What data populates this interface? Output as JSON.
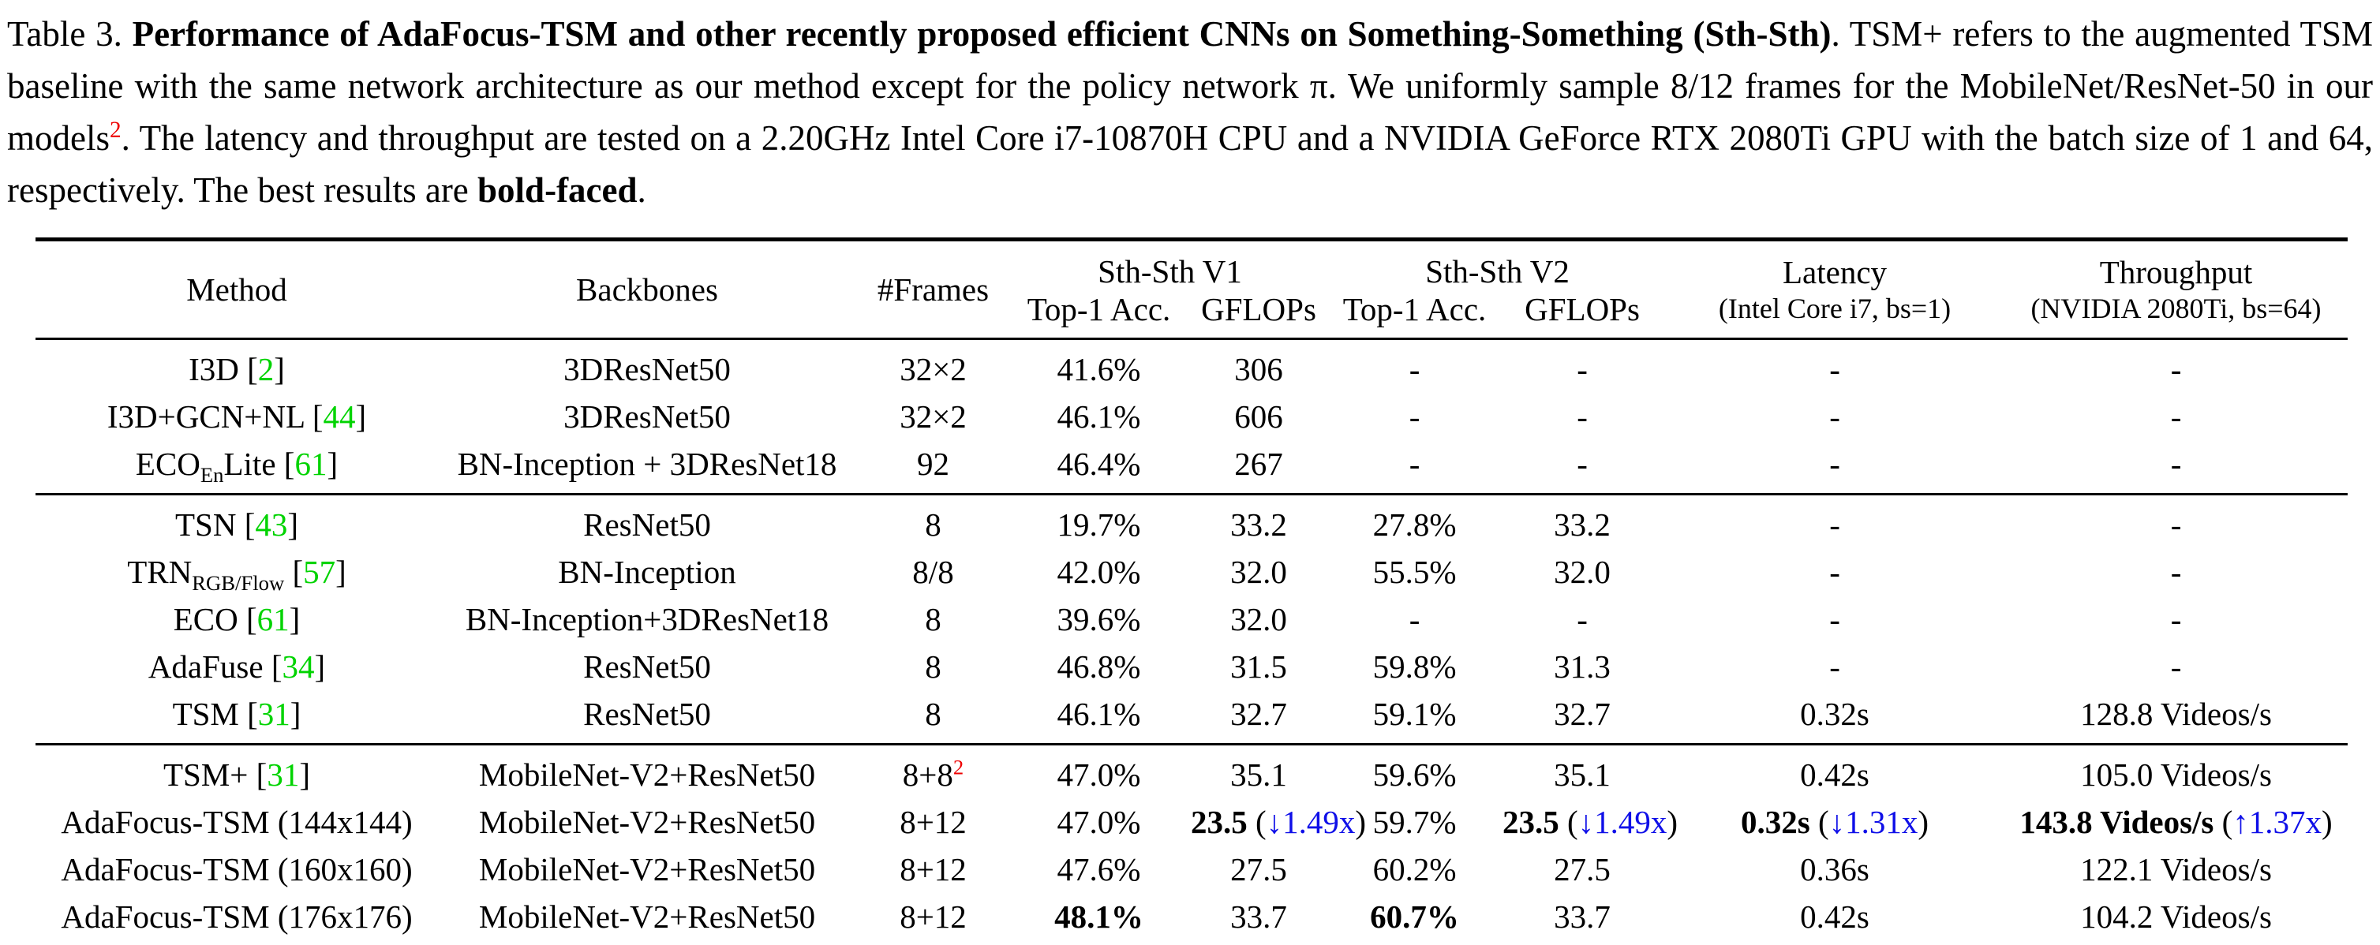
{
  "palette": {
    "text": "#000000",
    "background": "#ffffff",
    "citation_green": "#00d300",
    "improvement_blue": "#0f0fe8",
    "footnote_red": "#ee0000"
  },
  "caption": {
    "label": "Table 3. ",
    "title_bold": "Performance of AdaFocus-TSM and other recently proposed efficient CNNs on Something-Something (Sth-Sth)",
    "body_1": ". TSM+ refers to the augmented TSM baseline with the same network architecture as our method except for the policy network π. We uniformly sample 8/12 frames for the MobileNet/ResNet-50 in our models",
    "footnote_marker": "2",
    "body_2": ". The latency and throughput are tested on a 2.20GHz Intel Core i7-10870H CPU and a NVIDIA GeForce RTX 2080Ti GPU with the batch size of 1 and 64, respectively. The best results are ",
    "bold_faced_word": "bold-faced",
    "period": "."
  },
  "table": {
    "column_keys": [
      "method",
      "backbones",
      "frames",
      "v1-top1",
      "v1-gflops",
      "v2-top1",
      "v2-gflops",
      "latency",
      "throughput"
    ],
    "headers": {
      "method": "Method",
      "backbones": "Backbones",
      "frames": "#Frames",
      "sthsth_v1": "Sth-Sth V1",
      "sthsth_v2": "Sth-Sth V2",
      "top1_v1": "Top-1 Acc.",
      "gflops_v1": "GFLOPs",
      "top1_v2": "Top-1 Acc.",
      "gflops_v2": "GFLOPs",
      "latency_line1": "Latency",
      "latency_line2": "(Intel Core i7, bs=1)",
      "throughput_line1": "Throughput",
      "throughput_line2": "(NVIDIA 2080Ti, bs=64)"
    },
    "groups": [
      {
        "rows": [
          {
            "cells": [
              [
                "I3D [",
                {
                  "t": "2",
                  "c": "green"
                },
                "]"
              ],
              [
                "3DResNet50"
              ],
              [
                "32×2"
              ],
              [
                "41.6%"
              ],
              [
                "306"
              ],
              [
                "-"
              ],
              [
                "-"
              ],
              [
                "-"
              ],
              [
                "-"
              ]
            ]
          },
          {
            "cells": [
              [
                "I3D+GCN+NL [",
                {
                  "t": "44",
                  "c": "green"
                },
                "]"
              ],
              [
                "3DResNet50"
              ],
              [
                "32×2"
              ],
              [
                "46.1%"
              ],
              [
                "606"
              ],
              [
                "-"
              ],
              [
                "-"
              ],
              [
                "-"
              ],
              [
                "-"
              ]
            ]
          },
          {
            "cells": [
              [
                "ECO",
                {
                  "t": "En",
                  "v": "sub"
                },
                "Lite [",
                {
                  "t": "61",
                  "c": "green"
                },
                "]"
              ],
              [
                "BN-Inception + 3DResNet18"
              ],
              [
                "92"
              ],
              [
                "46.4%"
              ],
              [
                "267"
              ],
              [
                "-"
              ],
              [
                "-"
              ],
              [
                "-"
              ],
              [
                "-"
              ]
            ]
          }
        ]
      },
      {
        "rows": [
          {
            "cells": [
              [
                "TSN [",
                {
                  "t": "43",
                  "c": "green"
                },
                "]"
              ],
              [
                "ResNet50"
              ],
              [
                "8"
              ],
              [
                "19.7%"
              ],
              [
                "33.2"
              ],
              [
                "27.8%"
              ],
              [
                "33.2"
              ],
              [
                "-"
              ],
              [
                "-"
              ]
            ]
          },
          {
            "cells": [
              [
                "TRN",
                {
                  "t": "RGB/Flow",
                  "v": "sub"
                },
                " [",
                {
                  "t": "57",
                  "c": "green"
                },
                "]"
              ],
              [
                "BN-Inception"
              ],
              [
                "8/8"
              ],
              [
                "42.0%"
              ],
              [
                "32.0"
              ],
              [
                "55.5%"
              ],
              [
                "32.0"
              ],
              [
                "-"
              ],
              [
                "-"
              ]
            ]
          },
          {
            "cells": [
              [
                "ECO [",
                {
                  "t": "61",
                  "c": "green"
                },
                "]"
              ],
              [
                "BN-Inception+3DResNet18"
              ],
              [
                "8"
              ],
              [
                "39.6%"
              ],
              [
                "32.0"
              ],
              [
                "-"
              ],
              [
                "-"
              ],
              [
                "-"
              ],
              [
                "-"
              ]
            ]
          },
          {
            "cells": [
              [
                "AdaFuse [",
                {
                  "t": "34",
                  "c": "green"
                },
                "]"
              ],
              [
                "ResNet50"
              ],
              [
                "8"
              ],
              [
                "46.8%"
              ],
              [
                "31.5"
              ],
              [
                "59.8%"
              ],
              [
                "31.3"
              ],
              [
                "-"
              ],
              [
                "-"
              ]
            ]
          },
          {
            "cells": [
              [
                "TSM [",
                {
                  "t": "31",
                  "c": "green"
                },
                "]"
              ],
              [
                "ResNet50"
              ],
              [
                "8"
              ],
              [
                "46.1%"
              ],
              [
                "32.7"
              ],
              [
                "59.1%"
              ],
              [
                "32.7"
              ],
              [
                "0.32s"
              ],
              [
                "128.8 Videos/s"
              ]
            ]
          }
        ]
      },
      {
        "rows": [
          {
            "cells": [
              [
                "TSM+ [",
                {
                  "t": "31",
                  "c": "green"
                },
                "]"
              ],
              [
                "MobileNet-V2+ResNet50"
              ],
              [
                "8+8",
                {
                  "t": "2",
                  "c": "red",
                  "v": "sup"
                }
              ],
              [
                "47.0%"
              ],
              [
                "35.1"
              ],
              [
                "59.6%"
              ],
              [
                "35.1"
              ],
              [
                "0.42s"
              ],
              [
                "105.0 Videos/s"
              ]
            ]
          },
          {
            "cells": [
              [
                "AdaFocus-TSM (144x144)"
              ],
              [
                "MobileNet-V2+ResNet50"
              ],
              [
                "8+12"
              ],
              [
                "47.0%"
              ],
              [
                {
                  "t": "23.5",
                  "b": true
                },
                " (",
                {
                  "t": "↓1.49x",
                  "c": "blue"
                },
                ")"
              ],
              [
                "59.7%"
              ],
              [
                {
                  "t": "23.5",
                  "b": true
                },
                " (",
                {
                  "t": "↓1.49x",
                  "c": "blue"
                },
                ")"
              ],
              [
                {
                  "t": "0.32s",
                  "b": true
                },
                " (",
                {
                  "t": "↓1.31x",
                  "c": "blue"
                },
                ")"
              ],
              [
                {
                  "t": "143.8 Videos/s",
                  "b": true
                },
                " (",
                {
                  "t": "↑1.37x",
                  "c": "blue"
                },
                ")"
              ]
            ]
          },
          {
            "cells": [
              [
                "AdaFocus-TSM (160x160)"
              ],
              [
                "MobileNet-V2+ResNet50"
              ],
              [
                "8+12"
              ],
              [
                "47.6%"
              ],
              [
                "27.5"
              ],
              [
                "60.2%"
              ],
              [
                "27.5"
              ],
              [
                "0.36s"
              ],
              [
                "122.1 Videos/s"
              ]
            ]
          },
          {
            "cells": [
              [
                "AdaFocus-TSM (176x176)"
              ],
              [
                "MobileNet-V2+ResNet50"
              ],
              [
                "8+12"
              ],
              [
                {
                  "t": "48.1%",
                  "b": true
                }
              ],
              [
                "33.7"
              ],
              [
                {
                  "t": "60.7%",
                  "b": true
                }
              ],
              [
                "33.7"
              ],
              [
                "0.42s"
              ],
              [
                "104.2 Videos/s"
              ]
            ]
          }
        ]
      }
    ]
  }
}
